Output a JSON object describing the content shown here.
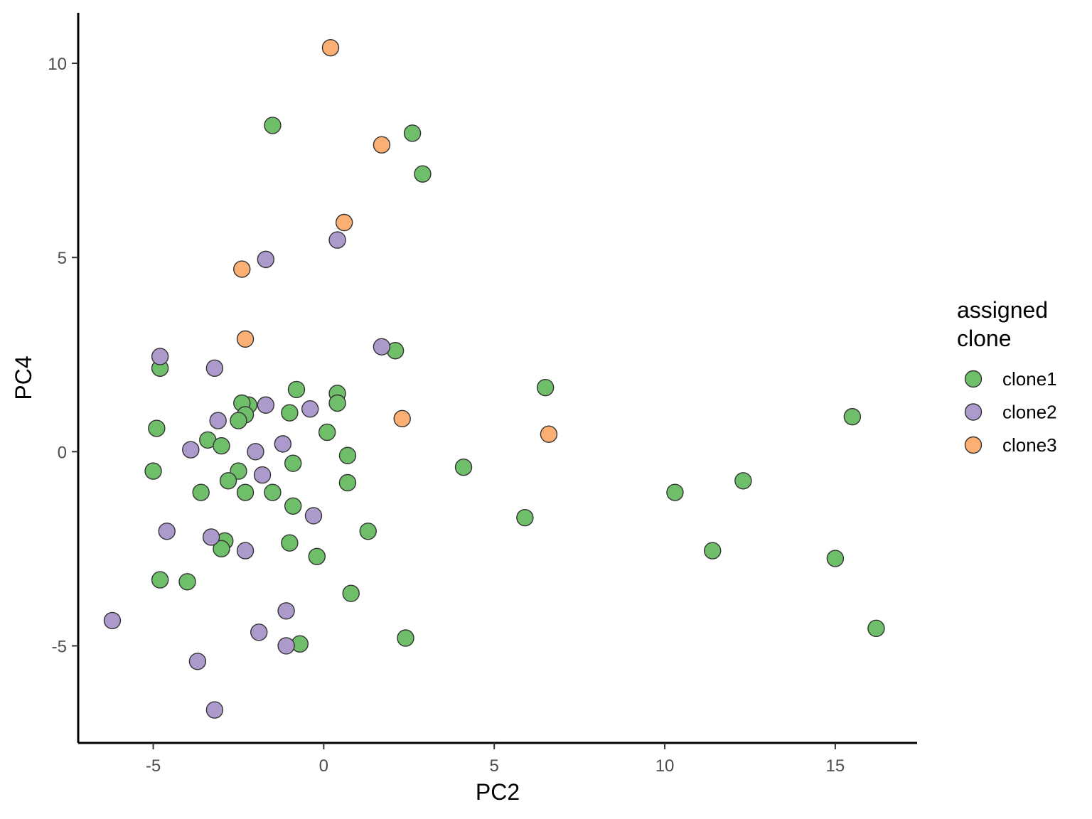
{
  "chart_data": {
    "type": "scatter",
    "xlabel": "PC2",
    "ylabel": "PC4",
    "xlim": [
      -7.2,
      17.4
    ],
    "ylim": [
      -7.5,
      11.3
    ],
    "xticks": [
      -5,
      0,
      5,
      10,
      15
    ],
    "yticks": [
      -5,
      0,
      5,
      10
    ],
    "xtick_labels": [
      "-5",
      "0",
      "5",
      "10",
      "15"
    ],
    "ytick_labels": [
      "-5",
      "0",
      "5",
      "10"
    ],
    "grid": false,
    "legend": {
      "title_lines": [
        "assigned",
        "clone"
      ],
      "position": "right"
    },
    "series": [
      {
        "name": "clone1",
        "color": "#6fbf6a",
        "points": [
          [
            -1.5,
            8.4
          ],
          [
            2.6,
            8.2
          ],
          [
            2.9,
            7.15
          ],
          [
            -4.8,
            2.15
          ],
          [
            -0.8,
            1.6
          ],
          [
            0.4,
            1.5
          ],
          [
            0.4,
            1.25
          ],
          [
            -2.2,
            1.2
          ],
          [
            -2.4,
            1.25
          ],
          [
            -1.0,
            1.0
          ],
          [
            -2.3,
            0.95
          ],
          [
            -2.5,
            0.8
          ],
          [
            -4.9,
            0.6
          ],
          [
            0.1,
            0.5
          ],
          [
            -3.4,
            0.3
          ],
          [
            -3.0,
            0.15
          ],
          [
            0.7,
            -0.1
          ],
          [
            -0.9,
            -0.3
          ],
          [
            -5.0,
            -0.5
          ],
          [
            -2.5,
            -0.5
          ],
          [
            -2.8,
            -0.75
          ],
          [
            0.7,
            -0.8
          ],
          [
            -3.6,
            -1.05
          ],
          [
            -2.3,
            -1.05
          ],
          [
            -1.5,
            -1.05
          ],
          [
            -0.9,
            -1.4
          ],
          [
            1.3,
            -2.05
          ],
          [
            -2.9,
            -2.3
          ],
          [
            -1.0,
            -2.35
          ],
          [
            -3.0,
            -2.5
          ],
          [
            -0.2,
            -2.7
          ],
          [
            -4.8,
            -3.3
          ],
          [
            -4.0,
            -3.35
          ],
          [
            0.8,
            -3.65
          ],
          [
            2.4,
            -4.8
          ],
          [
            -0.7,
            -4.95
          ],
          [
            4.1,
            -0.4
          ],
          [
            6.5,
            1.65
          ],
          [
            5.9,
            -1.7
          ],
          [
            10.3,
            -1.05
          ],
          [
            12.3,
            -0.75
          ],
          [
            11.4,
            -2.55
          ],
          [
            15.5,
            0.9
          ],
          [
            15.0,
            -2.75
          ],
          [
            16.2,
            -4.55
          ],
          [
            2.1,
            2.6
          ]
        ]
      },
      {
        "name": "clone2",
        "color": "#ab9acb",
        "points": [
          [
            0.4,
            5.45
          ],
          [
            -1.7,
            4.95
          ],
          [
            1.7,
            2.7
          ],
          [
            -4.8,
            2.45
          ],
          [
            -3.2,
            2.15
          ],
          [
            -1.7,
            1.2
          ],
          [
            -0.4,
            1.1
          ],
          [
            -3.1,
            0.8
          ],
          [
            -1.2,
            0.2
          ],
          [
            -3.9,
            0.05
          ],
          [
            -2.0,
            0.0
          ],
          [
            -1.8,
            -0.6
          ],
          [
            -0.3,
            -1.65
          ],
          [
            -4.6,
            -2.05
          ],
          [
            -3.3,
            -2.2
          ],
          [
            -2.3,
            -2.55
          ],
          [
            -1.1,
            -4.1
          ],
          [
            -1.9,
            -4.65
          ],
          [
            -1.1,
            -5.0
          ],
          [
            -6.2,
            -4.35
          ],
          [
            -3.7,
            -5.4
          ],
          [
            -3.2,
            -6.65
          ]
        ]
      },
      {
        "name": "clone3",
        "color": "#fcaf72",
        "points": [
          [
            0.2,
            10.4
          ],
          [
            1.7,
            7.9
          ],
          [
            0.6,
            5.9
          ],
          [
            -2.4,
            4.7
          ],
          [
            -2.3,
            2.9
          ],
          [
            2.3,
            0.85
          ],
          [
            6.6,
            0.45
          ]
        ]
      }
    ]
  }
}
